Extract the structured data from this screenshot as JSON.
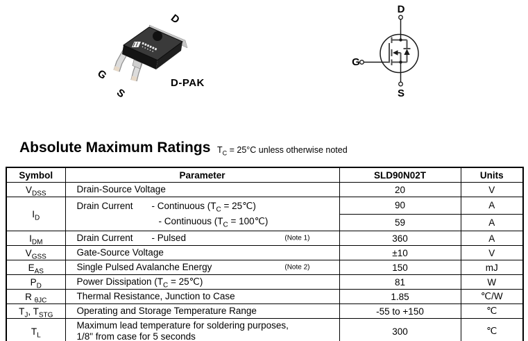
{
  "colors": {
    "text": "#000000",
    "table_border": "#000000",
    "package_body": "#3a3a3a",
    "package_side": "#161616",
    "package_lead": "#d8d8d8",
    "symbol_internal": "#4d4d4d"
  },
  "package_figure": {
    "caption": "D-PAK",
    "pins": {
      "d": "D",
      "g": "G",
      "s": "S"
    }
  },
  "symbol_figure": {
    "pins": {
      "d": "D",
      "g": "G",
      "s": "S"
    }
  },
  "section": {
    "title": "Absolute Maximum Ratings",
    "subtitle_parts": [
      {
        "t": "T"
      },
      {
        "s": "C"
      },
      {
        "t": " = 25°C unless otherwise noted"
      }
    ]
  },
  "table": {
    "headers": [
      "Symbol",
      "Parameter",
      "SLD90N02T",
      "Units"
    ],
    "rows": [
      {
        "symbol": [
          {
            "t": "V"
          },
          {
            "s": "DSS"
          }
        ],
        "param_lines": [
          [
            {
              "t": "Drain-Source Voltage"
            }
          ]
        ],
        "note": "",
        "values": [
          "20"
        ],
        "units": [
          "V"
        ]
      },
      {
        "symbol": [
          {
            "t": "I"
          },
          {
            "s": "D"
          }
        ],
        "param_lines": [
          [
            {
              "t": "Drain Current",
              "tab": 108
            },
            {
              "t": "- Continuous (T"
            },
            {
              "s": "C"
            },
            {
              "t": " = 25℃)"
            }
          ],
          [
            {
              "t": "",
              "tab": 118
            },
            {
              "t": "- Continuous (T"
            },
            {
              "s": "C"
            },
            {
              "t": " = 100℃)"
            }
          ]
        ],
        "note": "",
        "values": [
          "90",
          "59"
        ],
        "units": [
          "A",
          "A"
        ]
      },
      {
        "symbol": [
          {
            "t": "I"
          },
          {
            "s": "DM"
          }
        ],
        "param_lines": [
          [
            {
              "t": "Drain Current",
              "tab": 108
            },
            {
              "t": "- Pulsed"
            }
          ]
        ],
        "note": "(Note 1)",
        "values": [
          "360"
        ],
        "units": [
          "A"
        ]
      },
      {
        "symbol": [
          {
            "t": "V"
          },
          {
            "s": "GSS"
          }
        ],
        "param_lines": [
          [
            {
              "t": "Gate-Source Voltage"
            }
          ]
        ],
        "note": "",
        "values": [
          "±10"
        ],
        "units": [
          "V"
        ]
      },
      {
        "symbol": [
          {
            "t": "E"
          },
          {
            "s": "AS"
          }
        ],
        "param_lines": [
          [
            {
              "t": "Single Pulsed Avalanche Energy"
            }
          ]
        ],
        "note": "(Note 2)",
        "values": [
          "150"
        ],
        "units": [
          "mJ"
        ]
      },
      {
        "symbol": [
          {
            "t": "P"
          },
          {
            "s": "D"
          }
        ],
        "param_lines": [
          [
            {
              "t": "Power Dissipation (T"
            },
            {
              "s": "C"
            },
            {
              "t": " = 25℃)"
            }
          ]
        ],
        "note": "",
        "values": [
          "81"
        ],
        "units": [
          "W"
        ]
      },
      {
        "symbol": [
          {
            "t": "R "
          },
          {
            "s": "θJC"
          }
        ],
        "param_lines": [
          [
            {
              "t": "Thermal Resistance, Junction to Case"
            }
          ]
        ],
        "note": "",
        "values": [
          "1.85"
        ],
        "units": [
          "℃/W"
        ]
      },
      {
        "symbol": [
          {
            "t": "T"
          },
          {
            "s": "J"
          },
          {
            "t": ", T"
          },
          {
            "s": "STG"
          }
        ],
        "param_lines": [
          [
            {
              "t": "Operating and Storage Temperature Range"
            }
          ]
        ],
        "note": "",
        "values": [
          "-55 to +150"
        ],
        "units": [
          "℃"
        ]
      },
      {
        "symbol": [
          {
            "t": "T"
          },
          {
            "s": "L"
          }
        ],
        "param_lines": [
          [
            {
              "t": "Maximum lead temperature for soldering purposes,"
            }
          ],
          [
            {
              "t": "1/8\" from case for 5 seconds"
            }
          ]
        ],
        "note": "",
        "values": [
          "300"
        ],
        "units": [
          "℃"
        ]
      }
    ]
  }
}
